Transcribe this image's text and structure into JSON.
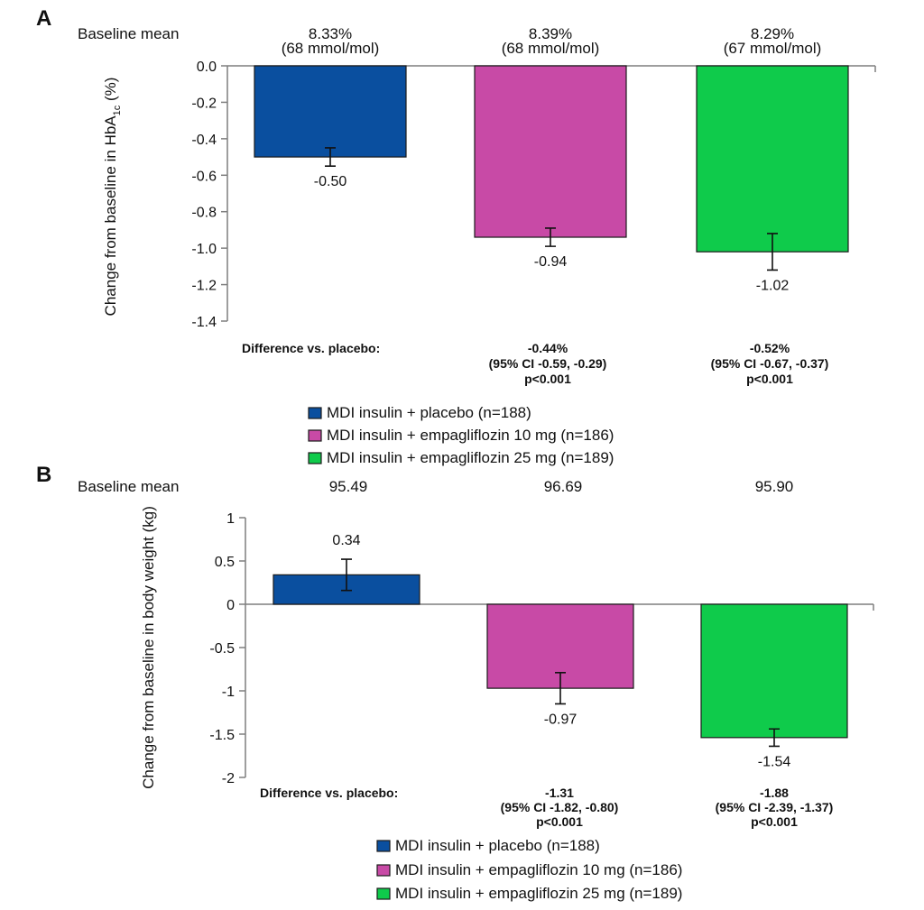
{
  "colors": {
    "placebo": "#0a4f9f",
    "empa10": "#c84aa6",
    "empa25": "#0fcb4b"
  },
  "chart_data": [
    {
      "panel": "A",
      "type": "bar",
      "ylabel_main": "Change from baseline in HbA",
      "ylabel_sub": "1c",
      "ylabel_unit": " (%)",
      "ylim": [
        -1.4,
        0.0
      ],
      "ticks": [
        "0.0",
        "-0.2",
        "-0.4",
        "-0.6",
        "-0.8",
        "-1.0",
        "-1.2",
        "-1.4"
      ],
      "tick_values": [
        0.0,
        -0.2,
        -0.4,
        -0.6,
        -0.8,
        -1.0,
        -1.2,
        -1.4
      ],
      "baseline_label": "Baseline mean",
      "baseline_values": [
        {
          "line1": "8.33%",
          "line2": "(68 mmol/mol)"
        },
        {
          "line1": "8.39%",
          "line2": "(68 mmol/mol)"
        },
        {
          "line1": "8.29%",
          "line2": "(67 mmol/mol)"
        }
      ],
      "series": [
        {
          "name": "MDI insulin + placebo (n=188)",
          "color_key": "placebo",
          "value": -0.5,
          "label": "-0.50",
          "err_low": -0.55,
          "err_high": -0.45
        },
        {
          "name": "MDI insulin + empagliflozin 10 mg (n=186)",
          "color_key": "empa10",
          "value": -0.94,
          "label": "-0.94",
          "err_low": -0.99,
          "err_high": -0.89
        },
        {
          "name": "MDI insulin + empagliflozin 25 mg (n=189)",
          "color_key": "empa25",
          "value": -1.02,
          "label": "-1.02",
          "err_low": -1.12,
          "err_high": -0.92
        }
      ],
      "difference_label": "Difference vs. placebo:",
      "differences": [
        {
          "value": "-0.44%",
          "ci": "(95% CI -0.59, -0.29)",
          "p": "p<0.001"
        },
        {
          "value": "-0.52%",
          "ci": "(95% CI -0.67, -0.37)",
          "p": "p<0.001"
        }
      ]
    },
    {
      "panel": "B",
      "type": "bar",
      "ylabel_main": "Change from baseline in body weight (kg)",
      "ylim": [
        -2,
        1
      ],
      "ticks": [
        "1",
        "0.5",
        "0",
        "-0.5",
        "-1",
        "-1.5",
        "-2"
      ],
      "tick_values": [
        1,
        0.5,
        0,
        -0.5,
        -1,
        -1.5,
        -2
      ],
      "baseline_label": "Baseline mean",
      "baseline_values": [
        {
          "line1": "95.49"
        },
        {
          "line1": "96.69"
        },
        {
          "line1": "95.90"
        }
      ],
      "series": [
        {
          "name": "MDI insulin + placebo (n=188)",
          "color_key": "placebo",
          "value": 0.34,
          "label": "0.34",
          "err_low": 0.16,
          "err_high": 0.52
        },
        {
          "name": "MDI insulin + empagliflozin 10 mg (n=186)",
          "color_key": "empa10",
          "value": -0.97,
          "label": "-0.97",
          "err_low": -1.15,
          "err_high": -0.79
        },
        {
          "name": "MDI insulin + empagliflozin 25 mg (n=189)",
          "color_key": "empa25",
          "value": -1.54,
          "label": "-1.54",
          "err_low": -1.64,
          "err_high": -1.44
        }
      ],
      "difference_label": "Difference vs. placebo:",
      "differences": [
        {
          "value": "-1.31",
          "ci": "(95% CI -1.82, -0.80)",
          "p": "p<0.001"
        },
        {
          "value": "-1.88",
          "ci": "(95% CI -2.39, -1.37)",
          "p": "p<0.001"
        }
      ]
    }
  ]
}
